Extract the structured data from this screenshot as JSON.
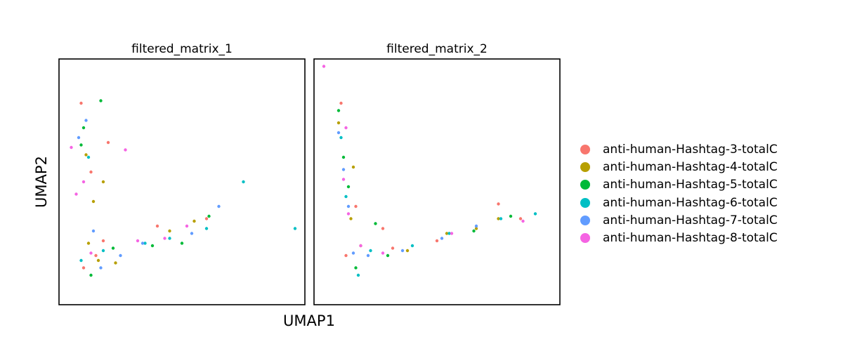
{
  "figure": {
    "xlabel": "UMAP1",
    "ylabel": "UMAP2"
  },
  "legend": {
    "placement": "right",
    "items": [
      {
        "label": "anti-human-Hashtag-3-totalC",
        "color": "#f8766d"
      },
      {
        "label": "anti-human-Hashtag-4-totalC",
        "color": "#b79f00"
      },
      {
        "label": "anti-human-Hashtag-5-totalC",
        "color": "#00ba38"
      },
      {
        "label": "anti-human-Hashtag-6-totalC",
        "color": "#00bfc4"
      },
      {
        "label": "anti-human-Hashtag-7-totalC",
        "color": "#619cff"
      },
      {
        "label": "anti-human-Hashtag-8-totalC",
        "color": "#f564e3"
      }
    ]
  },
  "chart_data": [
    {
      "type": "scatter",
      "title": "filtered_matrix_1",
      "xlabel": "UMAP1",
      "ylabel": "UMAP2",
      "xlim": [
        0,
        10
      ],
      "ylim": [
        0,
        10
      ],
      "axis_ticks": false,
      "grid": false,
      "series": [
        {
          "name": "anti-human-Hashtag-3-totalC",
          "x": [
            1.0,
            1.5,
            2.0,
            4.0,
            6.0,
            1.3,
            1.8,
            0.9
          ],
          "y": [
            1.5,
            2.0,
            6.6,
            3.2,
            3.5,
            5.4,
            2.6,
            8.2
          ]
        },
        {
          "name": "anti-human-Hashtag-4-totalC",
          "x": [
            1.2,
            1.6,
            1.8,
            2.3,
            4.5,
            5.5,
            1.4,
            1.1
          ],
          "y": [
            2.5,
            1.8,
            5.0,
            1.7,
            3.0,
            3.4,
            4.2,
            6.1
          ]
        },
        {
          "name": "anti-human-Hashtag-5-totalC",
          "x": [
            0.9,
            1.3,
            2.2,
            3.8,
            5.0,
            6.1,
            1.7,
            1.0
          ],
          "y": [
            6.5,
            1.2,
            2.3,
            2.4,
            2.5,
            3.6,
            8.3,
            7.2
          ]
        },
        {
          "name": "anti-human-Hashtag-6-totalC",
          "x": [
            1.2,
            0.9,
            1.8,
            4.5,
            6.0,
            7.5,
            9.6,
            3.5
          ],
          "y": [
            6.0,
            1.8,
            2.2,
            2.7,
            3.1,
            5.0,
            3.1,
            2.5
          ]
        },
        {
          "name": "anti-human-Hashtag-7-totalC",
          "x": [
            1.1,
            1.7,
            2.5,
            3.4,
            5.4,
            6.5,
            0.8,
            1.4
          ],
          "y": [
            7.5,
            1.5,
            2.0,
            2.5,
            2.9,
            4.0,
            6.8,
            3.0
          ]
        },
        {
          "name": "anti-human-Hashtag-8-totalC",
          "x": [
            0.5,
            1.3,
            2.7,
            3.2,
            4.3,
            5.2,
            1.0,
            0.7
          ],
          "y": [
            6.4,
            2.1,
            6.3,
            2.6,
            2.7,
            3.2,
            5.0,
            4.5
          ]
        }
      ]
    },
    {
      "type": "scatter",
      "title": "filtered_matrix_2",
      "xlabel": "UMAP1",
      "ylabel": "UMAP2",
      "xlim": [
        0,
        10
      ],
      "ylim": [
        0,
        10
      ],
      "axis_ticks": false,
      "grid": false,
      "series": [
        {
          "name": "anti-human-Hashtag-3-totalC",
          "x": [
            1.3,
            1.7,
            5.0,
            8.4,
            3.2,
            2.8,
            1.1,
            7.5
          ],
          "y": [
            2.0,
            4.0,
            2.6,
            3.5,
            2.3,
            3.1,
            8.2,
            4.1
          ]
        },
        {
          "name": "anti-human-Hashtag-4-totalC",
          "x": [
            1.5,
            1.9,
            3.8,
            7.5,
            1.6,
            6.6,
            1.0,
            5.4
          ],
          "y": [
            3.5,
            2.4,
            2.2,
            3.5,
            5.6,
            3.1,
            7.4,
            2.9
          ]
        },
        {
          "name": "anti-human-Hashtag-5-totalC",
          "x": [
            1.2,
            1.7,
            3.0,
            6.5,
            2.5,
            1.4,
            1.0,
            8.0
          ],
          "y": [
            6.0,
            1.5,
            2.0,
            3.0,
            3.3,
            4.8,
            7.9,
            3.6
          ]
        },
        {
          "name": "anti-human-Hashtag-6-totalC",
          "x": [
            1.1,
            1.8,
            4.0,
            7.6,
            1.3,
            5.5,
            9.0,
            2.3
          ],
          "y": [
            6.8,
            1.2,
            2.4,
            3.5,
            4.4,
            2.9,
            3.7,
            2.2
          ]
        },
        {
          "name": "anti-human-Hashtag-7-totalC",
          "x": [
            1.2,
            1.6,
            3.6,
            6.6,
            1.4,
            2.2,
            1.0,
            5.2
          ],
          "y": [
            5.5,
            2.1,
            2.2,
            3.2,
            4.0,
            2.0,
            7.0,
            2.7
          ]
        },
        {
          "name": "anti-human-Hashtag-8-totalC",
          "x": [
            0.4,
            1.4,
            2.8,
            5.6,
            1.2,
            1.3,
            8.5,
            1.9
          ],
          "y": [
            9.7,
            3.7,
            2.1,
            2.9,
            5.1,
            7.2,
            3.4,
            2.4
          ]
        }
      ]
    }
  ]
}
